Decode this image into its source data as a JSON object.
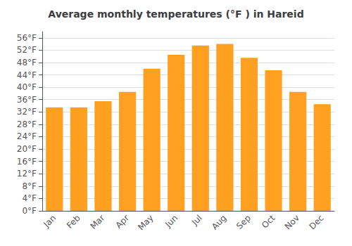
{
  "chart_data": {
    "type": "bar",
    "title": "Average monthly temperatures (°F ) in Hareid",
    "categories": [
      "Jan",
      "Feb",
      "Mar",
      "Apr",
      "May",
      "Jun",
      "Jul",
      "Aug",
      "Sep",
      "Oct",
      "Nov",
      "Dec"
    ],
    "values": [
      33.5,
      33.5,
      35.5,
      38.5,
      46.0,
      50.5,
      53.5,
      54.0,
      49.5,
      45.5,
      38.5,
      34.5
    ],
    "color": "#FFA020",
    "ylim": [
      0,
      58
    ],
    "yticks": [
      {
        "value": 0,
        "label": "0°F"
      },
      {
        "value": 4,
        "label": "4°F"
      },
      {
        "value": 8,
        "label": "8°F"
      },
      {
        "value": 12,
        "label": "12°F"
      },
      {
        "value": 16,
        "label": "16°F"
      },
      {
        "value": 20,
        "label": "20°F"
      },
      {
        "value": 24,
        "label": "24°F"
      },
      {
        "value": 28,
        "label": "28°F"
      },
      {
        "value": 32,
        "label": "32°F"
      },
      {
        "value": 36,
        "label": "36°F"
      },
      {
        "value": 40,
        "label": "40°F"
      },
      {
        "value": 44,
        "label": "44°F"
      },
      {
        "value": 48,
        "label": "48°F"
      },
      {
        "value": 52,
        "label": "52°F"
      },
      {
        "value": 56,
        "label": "56°F"
      }
    ],
    "grid": true
  }
}
